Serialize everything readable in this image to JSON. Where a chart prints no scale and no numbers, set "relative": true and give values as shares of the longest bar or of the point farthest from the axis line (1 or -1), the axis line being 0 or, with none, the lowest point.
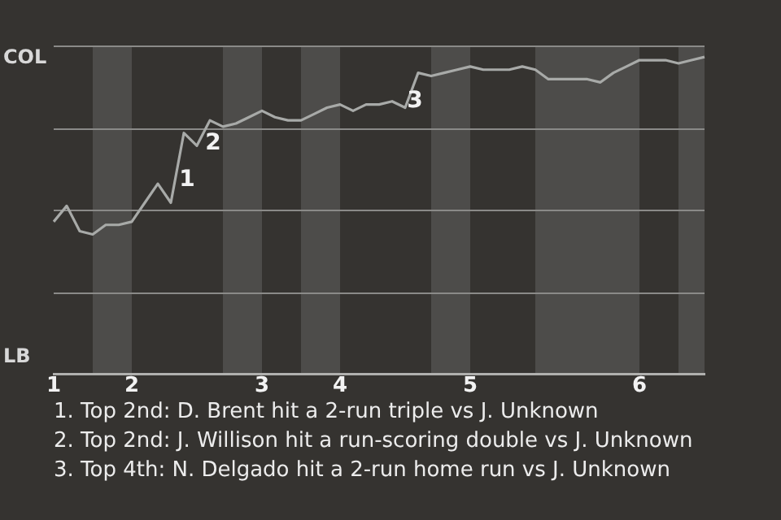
{
  "chart_data": {
    "type": "line",
    "relative": true,
    "categories": [
      "1",
      null,
      null,
      null,
      null,
      null,
      "2",
      null,
      null,
      null,
      null,
      null,
      null,
      null,
      null,
      null,
      "3",
      null,
      null,
      null,
      null,
      null,
      "4",
      null,
      null,
      null,
      null,
      null,
      null,
      null,
      null,
      null,
      "5",
      null,
      null,
      null,
      null,
      null,
      null,
      null,
      null,
      null,
      null,
      null,
      null,
      "6",
      null,
      null,
      null,
      null,
      null
    ],
    "series": [
      {
        "color": "#a8aaa8",
        "values": [
          0.48,
          0.53,
          0.45,
          0.44,
          0.47,
          0.47,
          0.48,
          0.54,
          0.6,
          0.54,
          0.76,
          0.72,
          0.8,
          0.78,
          0.79,
          0.81,
          0.83,
          0.81,
          0.8,
          0.8,
          0.82,
          0.84,
          0.85,
          0.83,
          0.85,
          0.85,
          0.86,
          0.84,
          0.95,
          0.94,
          0.95,
          0.96,
          0.97,
          0.96,
          0.96,
          0.96,
          0.97,
          0.96,
          0.93,
          0.93,
          0.93,
          0.93,
          0.92,
          0.95,
          0.97,
          0.99,
          0.99,
          0.99,
          0.98,
          0.99,
          1
        ]
      }
    ],
    "grid": "y",
    "legend": false,
    "marker": "none",
    "line_style": "solid",
    "annotations": [
      "COL",
      "LB",
      "1",
      "2",
      "3",
      "1. Top 2nd: D. Brent hit a 2-run triple vs J. Unknown",
      "2. Top 2nd: J. Willison hit a run-scoring double vs J. Unknown",
      "3. Top 4th: N. Delgado hit a 2-run home run vs J. Unknown"
    ]
  }
}
